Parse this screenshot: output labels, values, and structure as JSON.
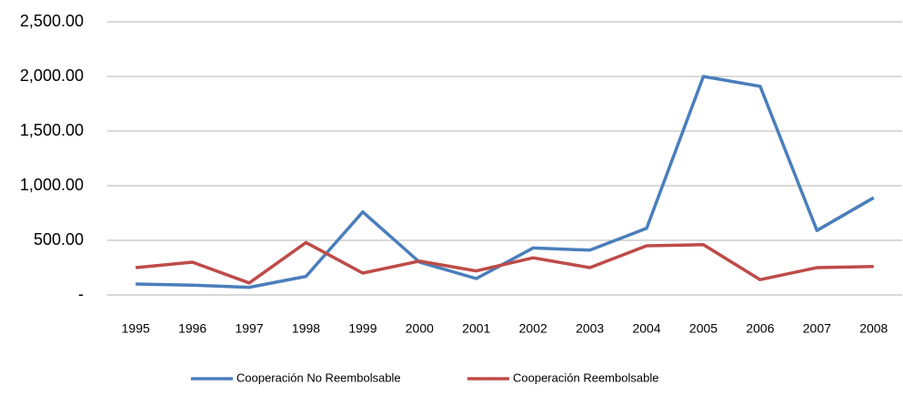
{
  "chart_data": {
    "type": "line",
    "categories": [
      "1995",
      "1996",
      "1997",
      "1998",
      "1999",
      "2000",
      "2001",
      "2002",
      "2003",
      "2004",
      "2005",
      "2006",
      "2007",
      "2008"
    ],
    "series": [
      {
        "name": "Cooperación No Reembolsable",
        "color": "#4a7ebb",
        "values": [
          100,
          90,
          70,
          170,
          760,
          300,
          150,
          430,
          410,
          610,
          2000,
          1910,
          590,
          890
        ]
      },
      {
        "name": "Cooperación Reembolsable",
        "color": "#be4b48",
        "values": [
          250,
          300,
          110,
          480,
          200,
          310,
          220,
          340,
          250,
          450,
          460,
          140,
          250,
          260
        ]
      }
    ],
    "ylim": [
      0,
      2500
    ],
    "yticks": [
      {
        "value": 0,
        "label": "-"
      },
      {
        "value": 500,
        "label": "500.00"
      },
      {
        "value": 1000,
        "label": "1,000.00"
      },
      {
        "value": 1500,
        "label": "1,500.00"
      },
      {
        "value": 2000,
        "label": "2,000.00"
      },
      {
        "value": 2500,
        "label": "2,500.00"
      }
    ],
    "grid": true,
    "legend": "bottom"
  }
}
